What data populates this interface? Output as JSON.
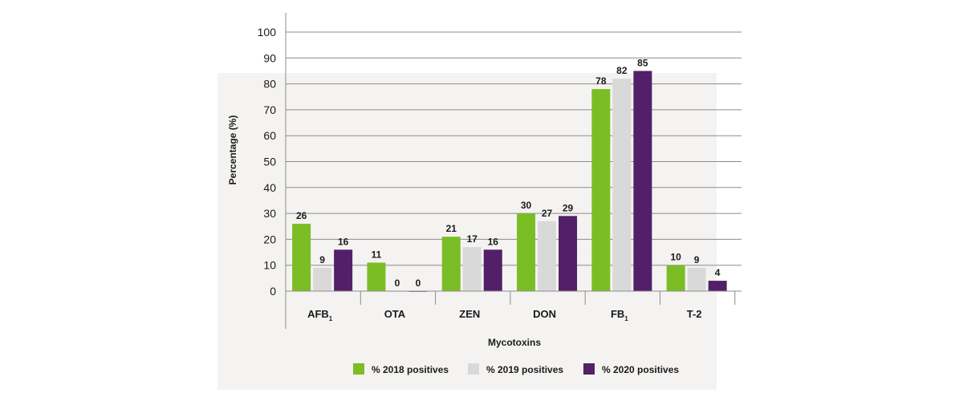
{
  "chart_data": {
    "type": "bar",
    "title": "",
    "xlabel": "Mycotoxins",
    "ylabel": "Percentage (%)",
    "ylim": [
      0,
      100
    ],
    "yticks": [
      0,
      10,
      20,
      30,
      40,
      50,
      60,
      70,
      80,
      90,
      100
    ],
    "grid": true,
    "legend_position": "bottom",
    "categories": [
      {
        "label": "AFB",
        "sub": "1"
      },
      {
        "label": "OTA",
        "sub": ""
      },
      {
        "label": "ZEN",
        "sub": ""
      },
      {
        "label": "DON",
        "sub": ""
      },
      {
        "label": "FB",
        "sub": "1"
      },
      {
        "label": "T-2",
        "sub": ""
      }
    ],
    "series": [
      {
        "name": "% 2018 positives",
        "color": "#7bbd24",
        "values": [
          26,
          11,
          21,
          30,
          78,
          10
        ]
      },
      {
        "name": "% 2019 positives",
        "color": "#d9d9d9",
        "values": [
          9,
          0,
          17,
          27,
          82,
          9
        ]
      },
      {
        "name": "% 2020 positives",
        "color": "#521f68",
        "values": [
          16,
          0,
          16,
          29,
          85,
          4
        ]
      }
    ]
  }
}
